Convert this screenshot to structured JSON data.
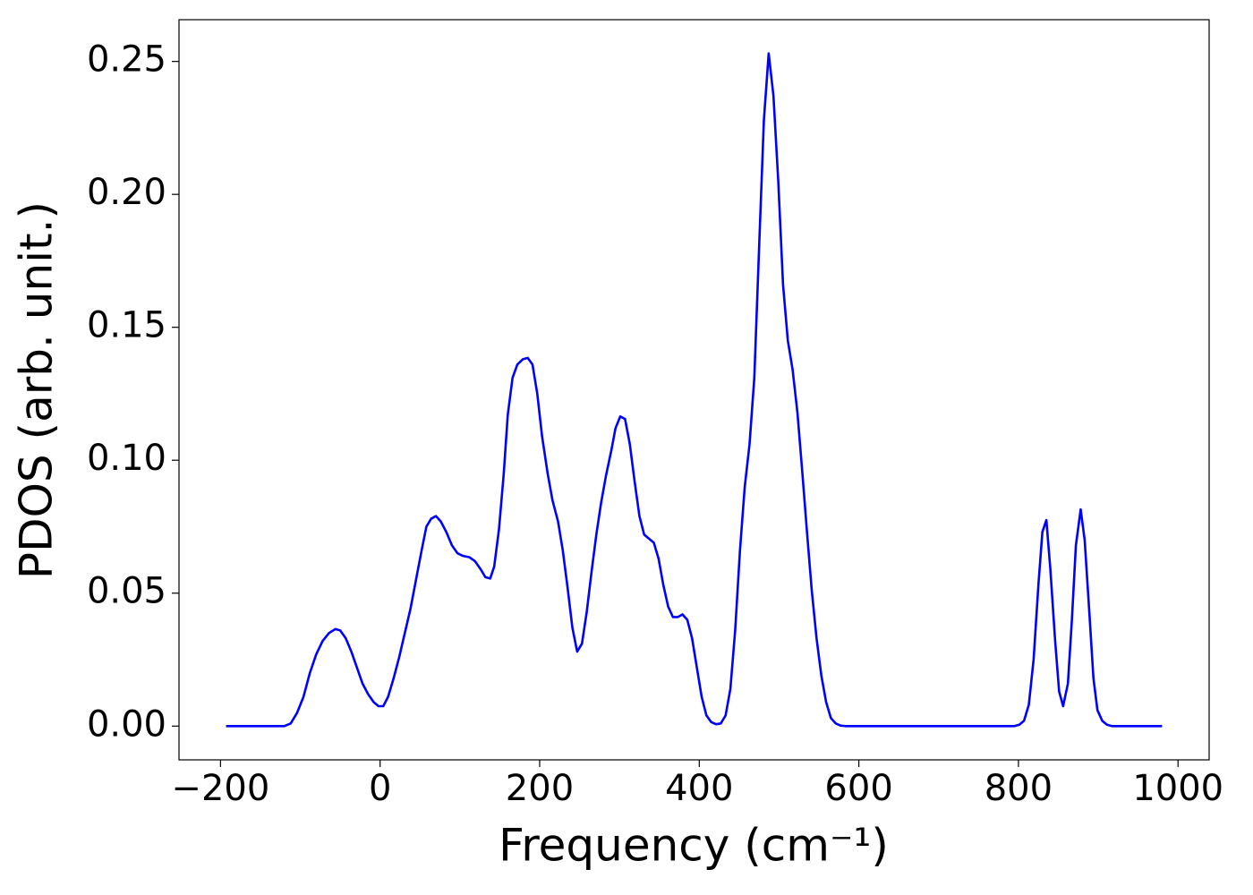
{
  "chart_data": {
    "type": "line",
    "xlabel": "Frequency (cm⁻¹)",
    "ylabel": "PDOS (arb. unit.)",
    "color": "#0000ff",
    "xlim": [
      -252,
      1039
    ],
    "ylim": [
      -0.0127,
      0.2657
    ],
    "xticks": [
      {
        "value": -200,
        "label": "−200"
      },
      0,
      200,
      400,
      600,
      800,
      1000
    ],
    "yticks": [
      {
        "value": 0,
        "label": "0.00"
      },
      {
        "value": 0.05,
        "label": "0.05"
      },
      {
        "value": 0.1,
        "label": "0.10"
      },
      {
        "value": 0.15,
        "label": "0.15"
      },
      {
        "value": 0.2,
        "label": "0.20"
      },
      {
        "value": 0.25,
        "label": "0.25"
      }
    ],
    "grid": false,
    "x": [
      -193,
      -120,
      -112,
      -104,
      -96,
      -88,
      -80,
      -72,
      -64,
      -56,
      -50,
      -43,
      -36,
      -29,
      -22,
      -15,
      -8,
      -2,
      4,
      10,
      17,
      24,
      31,
      38,
      45,
      52,
      58,
      64,
      70,
      76,
      83,
      90,
      97,
      104,
      112,
      119,
      126,
      132,
      138,
      143,
      149,
      155,
      160,
      166,
      172,
      179,
      185,
      191,
      197,
      203,
      210,
      216,
      223,
      229,
      235,
      241,
      247,
      253,
      259,
      265,
      271,
      277,
      283,
      290,
      295,
      301,
      307,
      313,
      319,
      325,
      331,
      337,
      343,
      349,
      355,
      361,
      367,
      373,
      379,
      385,
      391,
      397,
      403,
      409,
      415,
      421,
      427,
      433,
      439,
      445,
      451,
      457,
      463,
      469,
      475,
      481,
      487,
      493,
      499,
      505,
      511,
      517,
      523,
      529,
      535,
      541,
      547,
      553,
      559,
      565,
      571,
      577,
      583,
      795,
      801,
      807,
      813,
      819,
      825,
      830,
      835,
      840,
      846,
      851,
      856,
      862,
      867,
      872,
      878,
      883,
      889,
      894,
      899,
      905,
      911,
      917,
      980
    ],
    "values": [
      0,
      0,
      0.001,
      0.005,
      0.011,
      0.02,
      0.027,
      0.032,
      0.035,
      0.0365,
      0.036,
      0.033,
      0.028,
      0.022,
      0.016,
      0.012,
      0.009,
      0.0075,
      0.0075,
      0.011,
      0.018,
      0.026,
      0.035,
      0.044,
      0.055,
      0.066,
      0.075,
      0.078,
      0.079,
      0.077,
      0.073,
      0.068,
      0.065,
      0.064,
      0.0635,
      0.062,
      0.059,
      0.056,
      0.0555,
      0.06,
      0.074,
      0.095,
      0.117,
      0.131,
      0.136,
      0.138,
      0.1385,
      0.136,
      0.125,
      0.109,
      0.095,
      0.085,
      0.077,
      0.066,
      0.052,
      0.037,
      0.028,
      0.031,
      0.043,
      0.058,
      0.072,
      0.084,
      0.094,
      0.104,
      0.112,
      0.1165,
      0.1155,
      0.106,
      0.092,
      0.079,
      0.072,
      0.0705,
      0.069,
      0.063,
      0.053,
      0.045,
      0.041,
      0.041,
      0.042,
      0.04,
      0.033,
      0.022,
      0.011,
      0.004,
      0.0015,
      0.0007,
      0.001,
      0.004,
      0.014,
      0.036,
      0.066,
      0.09,
      0.106,
      0.131,
      0.18,
      0.228,
      0.253,
      0.237,
      0.205,
      0.166,
      0.145,
      0.134,
      0.118,
      0.096,
      0.073,
      0.051,
      0.033,
      0.019,
      0.009,
      0.003,
      0.001,
      0.0002,
      0,
      0,
      0.0005,
      0.002,
      0.008,
      0.025,
      0.053,
      0.073,
      0.0775,
      0.059,
      0.032,
      0.013,
      0.0075,
      0.016,
      0.04,
      0.068,
      0.0815,
      0.07,
      0.042,
      0.018,
      0.006,
      0.002,
      0.0005,
      0,
      0
    ]
  }
}
